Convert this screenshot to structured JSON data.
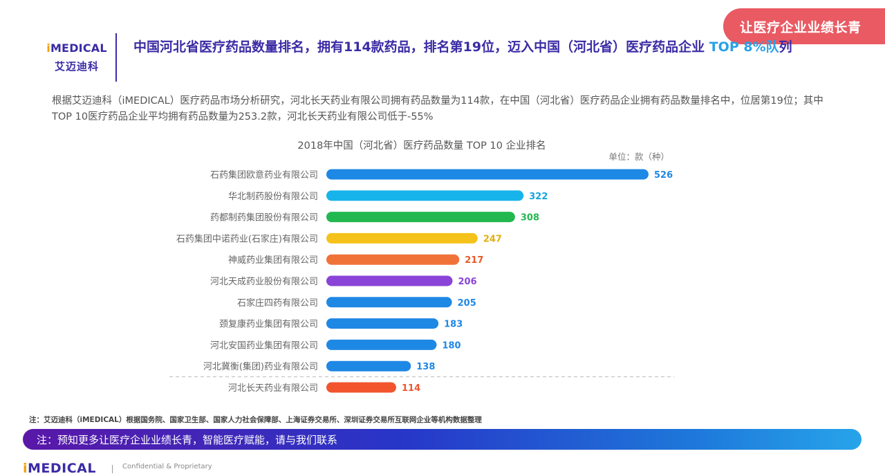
{
  "badge": "让医疗企业业绩长青",
  "logo": {
    "prefix": "i",
    "name": "MEDICAL",
    "cn": "艾迈迪科"
  },
  "headline": {
    "main": "中国河北省医疗药品数量排名，拥有114款药品，排名第19位，迈入中国（河北省）医疗药品企业",
    "highlight": " TOP 8%队",
    "tail": "列"
  },
  "description": "根据艾迈迪科（iMEDICAL）医疗药品市场分析研究，河北长天药业有限公司拥有药品数量为114款，在中国（河北省）医疗药品企业拥有药品数量排名中，位居第19位；其中TOP 10医疗药品企业平均拥有药品数量为253.2款，河北长天药业有限公司低于-55%",
  "chart_data": {
    "type": "bar",
    "orientation": "horizontal",
    "title": "2018年中国（河北省）医疗药品数量 TOP 10 企业排名",
    "unit": "单位：款（种）",
    "categories": [
      "石药集团欧意药业有限公司",
      "华北制药股份有限公司",
      "药都制药集团股份有限公司",
      "石药集团中诺药业(石家庄)有限公司",
      "神威药业集团有限公司",
      "河北天成药业股份有限公司",
      "石家庄四药有限公司",
      "颈复康药业集团有限公司",
      "河北安国药业集团有限公司",
      "河北冀衡(集团)药业有限公司",
      "河北长天药业有限公司"
    ],
    "values": [
      526,
      322,
      308,
      247,
      217,
      206,
      205,
      183,
      180,
      138,
      114
    ],
    "colors": [
      "#1e88e5",
      "#16b4ea",
      "#22b84f",
      "#f4c21a",
      "#f07238",
      "#8a44d8",
      "#1e88e5",
      "#1e88e5",
      "#1e88e5",
      "#1e88e5",
      "#f2542d"
    ],
    "label_colors": [
      "#1e88e5",
      "#16a4dc",
      "#22b84f",
      "#e0b00f",
      "#e85a2a",
      "#8a44d8",
      "#1e88e5",
      "#1e88e5",
      "#1e88e5",
      "#1e88e5",
      "#f2542d"
    ],
    "xlim": [
      0,
      526
    ],
    "grid": false,
    "separator_before_last": true
  },
  "note": "注：艾迈迪科（iMEDICAL）根据国务院、国家卫生部、国家人力社会保障部、上海证券交易所、深圳证券交易所互联网企业等机构数据整理",
  "banner": "注：预知更多让医疗企业业绩长青，智能医疗赋能，请与我们联系",
  "footer": {
    "logo_prefix": "i",
    "logo_name": "MEDICAL",
    "confidential": "Confidential & Proprietary"
  }
}
